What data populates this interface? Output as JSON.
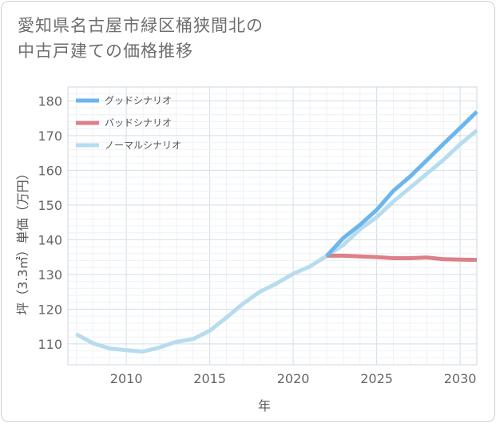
{
  "title": {
    "line1": "愛知県名古屋市緑区桶狭間北の",
    "line2": "中古戸建ての価格推移"
  },
  "chart_data": {
    "type": "line",
    "xlabel": "年",
    "ylabel": "坪（3.3㎡）単価（万円）",
    "xlim": [
      2006.5,
      2031
    ],
    "ylim": [
      104,
      184
    ],
    "xticks": [
      2010,
      2015,
      2020,
      2025,
      2030
    ],
    "yticks": [
      110,
      120,
      130,
      140,
      150,
      160,
      170,
      180
    ],
    "legend_position": "top-left",
    "grid": true,
    "series": [
      {
        "name": "グッドシナリオ",
        "color": "#6cb6ec",
        "x": [
          2022,
          2023,
          2024,
          2025,
          2026,
          2027,
          2028,
          2029,
          2030,
          2031
        ],
        "y": [
          135.3,
          140.5,
          144.3,
          148.6,
          154.1,
          158.2,
          162.9,
          167.6,
          172.2,
          176.9
        ]
      },
      {
        "name": "バッドシナリオ",
        "color": "#dd8088",
        "x": [
          2022,
          2023,
          2024,
          2025,
          2026,
          2027,
          2028,
          2029,
          2030,
          2031
        ],
        "y": [
          135.4,
          135.4,
          135.2,
          135.0,
          134.7,
          134.7,
          134.9,
          134.4,
          134.3,
          134.2
        ]
      },
      {
        "name": "ノーマルシナリオ",
        "color": "#b7dcee",
        "x": [
          2007,
          2008,
          2009,
          2010,
          2011,
          2012,
          2013,
          2014,
          2015,
          2016,
          2017,
          2018,
          2019,
          2020,
          2021,
          2022,
          2023,
          2024,
          2025,
          2026,
          2027,
          2028,
          2029,
          2030,
          2031
        ],
        "y": [
          112.8,
          110.2,
          108.7,
          108.2,
          107.8,
          109.0,
          110.6,
          111.4,
          113.8,
          117.6,
          121.6,
          125.0,
          127.4,
          130.2,
          132.3,
          135.3,
          138.5,
          143.0,
          146.5,
          151.0,
          155.0,
          159.0,
          163.0,
          167.5,
          171.5
        ]
      }
    ]
  }
}
